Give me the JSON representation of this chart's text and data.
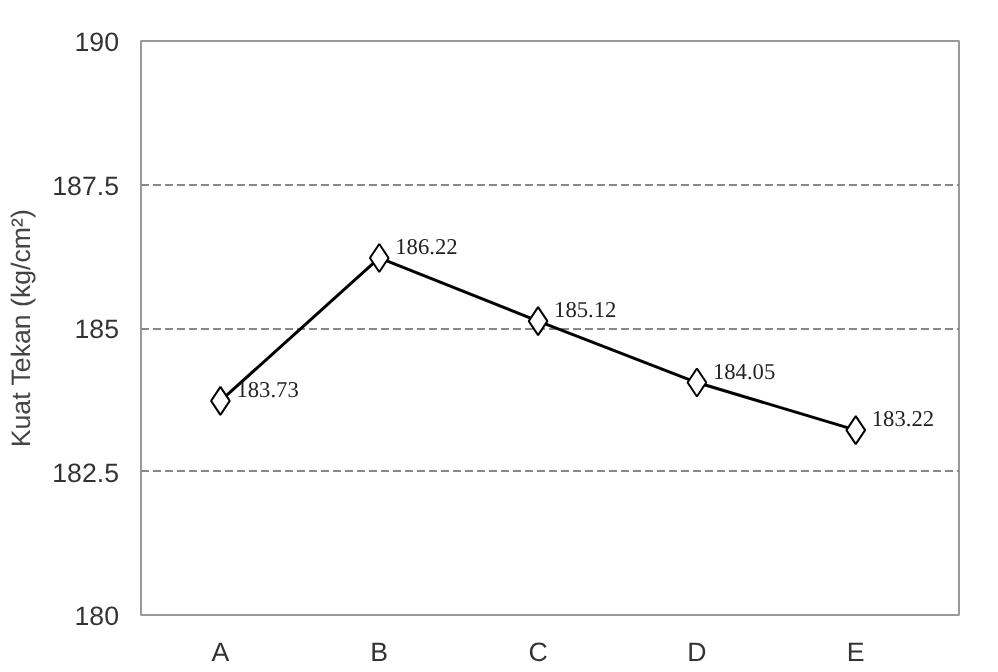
{
  "chart_data": {
    "type": "line",
    "ylabel": "Kuat Tekan (kg/cm²)",
    "categories": [
      "A",
      "B",
      "C",
      "D",
      "E"
    ],
    "series": [
      {
        "color": "#000000",
        "values": [
          183.73,
          186.22,
          185.12,
          184.05,
          183.22
        ]
      }
    ],
    "ylim": [
      180,
      190
    ],
    "yticks": [
      180,
      182.5,
      185,
      187.5,
      190
    ],
    "grid": "y",
    "marker": "diamond",
    "line_style": "solid",
    "data_labels": true
  }
}
